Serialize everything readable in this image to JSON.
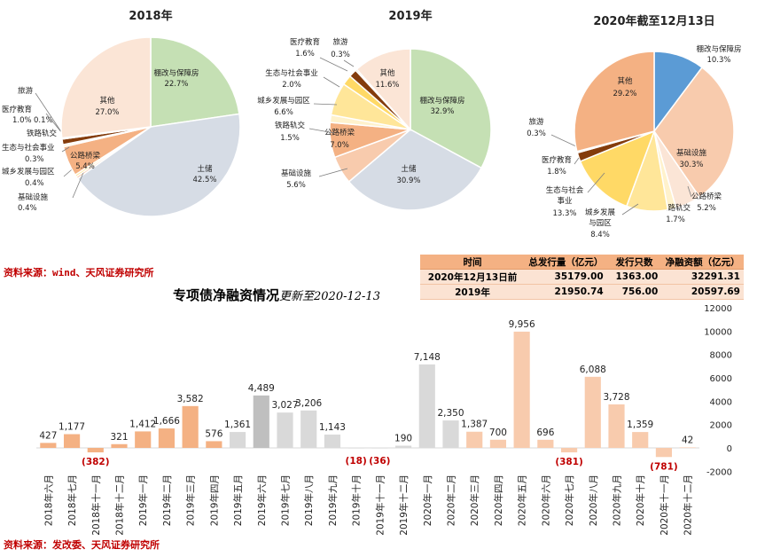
{
  "sources": {
    "top": "资料来源：wind、天风证券研究所",
    "bottom": "资料来源：发改委、天风证券研究所"
  },
  "bar_title": {
    "main": "专项债净融资情况",
    "sub": "更新至2020-12-13"
  },
  "table": {
    "headers": [
      "时间",
      "总发行量（亿元）",
      "发行只数",
      "净融资额（亿元）"
    ],
    "rows": [
      [
        "2020年12月13日前",
        "35179.00",
        "1363.00",
        "32291.31"
      ],
      [
        "2019年",
        "21950.74",
        "756.00",
        "20597.69"
      ]
    ]
  },
  "colors": {
    "bar_2018": "#f4b183",
    "bar_2019": "#d9d9d9",
    "bar_2019_highlight": "#bfbfbf",
    "bar_2020": "#f8cbad",
    "negative_label": "#c00000"
  },
  "chart_data": [
    {
      "type": "pie",
      "title": "2018年",
      "slices": [
        {
          "name": "棚改与保障房",
          "value": 22.7,
          "label": "22.7%",
          "color": "#c5e0b4"
        },
        {
          "name": "土储",
          "value": 42.5,
          "label": "42.5%",
          "color": "#d6dce5"
        },
        {
          "name": "基础设施",
          "value": 0.4,
          "label": "0.4%",
          "color": "#f8cbad"
        },
        {
          "name": "城乡发展与园区",
          "value": 0.4,
          "label": "0.4%",
          "color": "#ffe699"
        },
        {
          "name": "公路桥梁",
          "value": 5.4,
          "label": "5.4%",
          "color": "#f4b183"
        },
        {
          "name": "生态与社会事业",
          "value": 0.3,
          "label": "0.3%",
          "color": "#ffd966"
        },
        {
          "name": "铁路轨交",
          "value": 0.1,
          "label": "0.1%",
          "color": "#ffd966"
        },
        {
          "name": "医疗教育",
          "value": 1.0,
          "label": "1.0%",
          "color": "#843c0c"
        },
        {
          "name": "旅游",
          "value": 0.2,
          "label": "",
          "color": "#a5a5a5"
        },
        {
          "name": "其他",
          "value": 27.0,
          "label": "27.0%",
          "color": "#fbe5d6"
        }
      ]
    },
    {
      "type": "pie",
      "title": "2019年",
      "slices": [
        {
          "name": "棚改与保障房",
          "value": 32.9,
          "label": "32.9%",
          "color": "#c5e0b4"
        },
        {
          "name": "土储",
          "value": 30.9,
          "label": "30.9%",
          "color": "#d6dce5"
        },
        {
          "name": "基础设施",
          "value": 5.6,
          "label": "5.6%",
          "color": "#f8cbad"
        },
        {
          "name": "公路桥梁",
          "value": 7.0,
          "label": "7.0%",
          "color": "#f4b183"
        },
        {
          "name": "铁路轨交",
          "value": 1.5,
          "label": "1.5%",
          "color": "#fff2cc"
        },
        {
          "name": "城乡发展与园区",
          "value": 6.6,
          "label": "6.6%",
          "color": "#ffe699"
        },
        {
          "name": "生态与社会事业",
          "value": 2.0,
          "label": "2.0%",
          "color": "#ffd966"
        },
        {
          "name": "医疗教育",
          "value": 1.6,
          "label": "1.6%",
          "color": "#843c0c"
        },
        {
          "name": "旅游",
          "value": 0.3,
          "label": "0.3%",
          "color": "#bf9000"
        },
        {
          "name": "其他",
          "value": 11.6,
          "label": "11.6%",
          "color": "#fbe5d6"
        }
      ]
    },
    {
      "type": "pie",
      "title": "2020年截至12月13日",
      "slices": [
        {
          "name": "棚改与保障房",
          "value": 10.3,
          "label": "10.3%",
          "color": "#5b9bd5"
        },
        {
          "name": "基础设施",
          "value": 30.3,
          "label": "30.3%",
          "color": "#f8cbad"
        },
        {
          "name": "公路桥梁",
          "value": 5.2,
          "label": "5.2%",
          "color": "#fbe5d6"
        },
        {
          "name": "铁路轨交",
          "value": 1.7,
          "label": "1.7%",
          "color": "#fff2cc"
        },
        {
          "name": "城乡发展与园区",
          "value": 8.4,
          "label": "8.4%",
          "color": "#ffe699"
        },
        {
          "name": "生态与社会事业",
          "value": 13.3,
          "label": "13.3%",
          "color": "#ffd966"
        },
        {
          "name": "医疗教育",
          "value": 1.8,
          "label": "1.8%",
          "color": "#843c0c"
        },
        {
          "name": "旅游",
          "value": 0.3,
          "label": "0.3%",
          "color": "#a5a5a5"
        },
        {
          "name": "其他",
          "value": 29.2,
          "label": "29.2%",
          "color": "#f4b183"
        }
      ]
    },
    {
      "type": "bar",
      "title": "专项债净融资情况",
      "categories": [
        "2018年六月",
        "2018年七月",
        "2018年十一月",
        "2018年十二月",
        "2019年一月",
        "2019年二月",
        "2019年三月",
        "2019年四月",
        "2019年五月",
        "2019年六月",
        "2019年七月",
        "2019年八月",
        "2019年九月",
        "2019年十月",
        "2019年十一月",
        "2019年十二月",
        "2020年一月",
        "2020年二月",
        "2020年三月",
        "2020年四月",
        "2020年五月",
        "2020年六月",
        "2020年七月",
        "2020年八月",
        "2020年九月",
        "2020年十月",
        "2020年十一月",
        "2020年十二月"
      ],
      "values": [
        427,
        1177,
        -382,
        321,
        1412,
        1666,
        3582,
        576,
        1361,
        4489,
        3027,
        3206,
        1143,
        -18,
        -36,
        190,
        7148,
        2350,
        1387,
        700,
        9956,
        696,
        -381,
        6088,
        3728,
        1359,
        -781,
        42
      ],
      "value_labels": [
        "427",
        "1,177",
        "(382)",
        "321",
        "1,412",
        "1,666",
        "3,582",
        "576",
        "1,361",
        "4,489",
        "3,027",
        "3,206",
        "1,143",
        "(18)",
        "(36)",
        "190",
        "7,148",
        "2,350",
        "1,387",
        "700",
        "9,956",
        "696",
        "(381)",
        "6,088",
        "3,728",
        "1,359",
        "(781)",
        "42"
      ],
      "bar_colors": [
        "#f4b183",
        "#f4b183",
        "#f4b183",
        "#f4b183",
        "#f4b183",
        "#f4b183",
        "#f4b183",
        "#f4b183",
        "#d9d9d9",
        "#bfbfbf",
        "#d9d9d9",
        "#d9d9d9",
        "#d9d9d9",
        "#d9d9d9",
        "#d9d9d9",
        "#d9d9d9",
        "#d9d9d9",
        "#d9d9d9",
        "#f8cbad",
        "#f8cbad",
        "#f8cbad",
        "#f8cbad",
        "#f8cbad",
        "#f8cbad",
        "#f8cbad",
        "#f8cbad",
        "#f8cbad",
        "#f8cbad"
      ],
      "ylim": [
        -2000,
        12000
      ],
      "yticks": [
        -2000,
        0,
        2000,
        4000,
        6000,
        8000,
        10000,
        12000
      ],
      "grid": false
    }
  ]
}
